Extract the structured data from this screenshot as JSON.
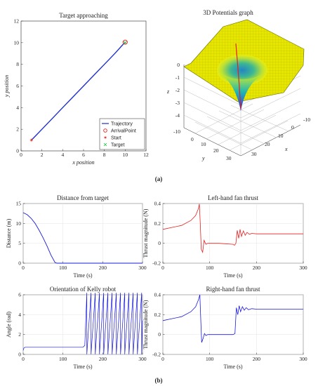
{
  "captions": [
    "(a)",
    "(b)"
  ],
  "colors": {
    "trajectory": "#1f2fcc",
    "blue": "#1a1adb",
    "red": "#e62020",
    "axis": "#262626",
    "grid": "#e6e6e6",
    "surface_yellow": "#e6e600"
  },
  "chart_data": [
    {
      "id": "target",
      "type": "line",
      "title": "Target approaching",
      "xlabel": "x position",
      "ylabel": "y position",
      "xlim": [
        0,
        12
      ],
      "ylim": [
        0,
        12
      ],
      "xticks": [
        0,
        2,
        4,
        6,
        8,
        10,
        12
      ],
      "yticks": [
        0,
        2,
        4,
        6,
        8,
        10,
        12
      ],
      "legend_position": "bottom-right",
      "series": [
        {
          "name": "Trajectory",
          "marker": "line",
          "x": [
            1.0,
            1.5,
            2.0,
            3.0,
            4.0,
            5.0,
            6.0,
            7.0,
            8.0,
            9.0,
            9.8,
            10.0
          ],
          "y": [
            1.0,
            1.5,
            2.0,
            3.0,
            4.0,
            5.0,
            6.0,
            7.0,
            8.0,
            9.0,
            9.85,
            10.0
          ]
        },
        {
          "name": "ArrivalPoint",
          "marker": "circle",
          "x": [
            10.0
          ],
          "y": [
            10.05
          ]
        },
        {
          "name": "Start",
          "marker": "star",
          "x": [
            1.0
          ],
          "y": [
            1.0
          ]
        },
        {
          "name": "Target",
          "marker": "x",
          "x": [
            10.0
          ],
          "y": [
            10.0
          ]
        }
      ]
    },
    {
      "id": "potential3d",
      "type": "surface",
      "title": "3D Potentials graph",
      "xlabel": "x",
      "ylabel": "y",
      "zlabel": "z",
      "zticks": [
        0,
        -1,
        -2,
        -3,
        -4
      ],
      "xticks": [
        -10,
        0,
        10,
        20,
        30
      ],
      "yticks": [
        -10,
        0,
        10,
        20,
        30
      ],
      "minimum": {
        "x": 10,
        "y": 10,
        "z": -3
      }
    },
    {
      "id": "distance",
      "type": "line",
      "title": "Distance from target",
      "xlabel": "Time (s)",
      "ylabel": "Distance (m)",
      "xlim": [
        0,
        300
      ],
      "ylim": [
        0,
        15
      ],
      "xticks": [
        0,
        100,
        200,
        300
      ],
      "yticks": [
        0,
        5,
        10,
        15
      ],
      "series": [
        {
          "x": [
            0,
            10,
            20,
            30,
            40,
            50,
            60,
            70,
            80,
            85,
            300
          ],
          "y": [
            12.7,
            12.2,
            11.3,
            10.0,
            8.3,
            6.4,
            4.3,
            2.0,
            0.2,
            0.0,
            0.0
          ]
        }
      ]
    },
    {
      "id": "left_thrust",
      "type": "line",
      "title": "Left-hand fan thrust",
      "xlabel": "Time (s)",
      "ylabel": "Thrust magnitude (N)",
      "xlim": [
        0,
        300
      ],
      "ylim": [
        -0.2,
        0.4
      ],
      "xticks": [
        0,
        100,
        200,
        300
      ],
      "yticks": [
        -0.2,
        0,
        0.2,
        0.4
      ],
      "series": [
        {
          "x": [
            0,
            20,
            40,
            60,
            70,
            76,
            78,
            80,
            82,
            85,
            88,
            92,
            96,
            100,
            120,
            150,
            153,
            156,
            159,
            162,
            165,
            168,
            172,
            176,
            180,
            185,
            190,
            200,
            300
          ],
          "y": [
            0.14,
            0.16,
            0.18,
            0.23,
            0.28,
            0.35,
            0.395,
            0.2,
            -0.06,
            -0.09,
            0.03,
            -0.01,
            0.0,
            0.0,
            0.0,
            -0.01,
            -0.02,
            0.0,
            0.13,
            0.05,
            0.14,
            0.07,
            0.125,
            0.08,
            0.11,
            0.09,
            0.1,
            0.095,
            0.095
          ]
        }
      ]
    },
    {
      "id": "orientation",
      "type": "line",
      "title": "Orientation of Kelly robot",
      "xlabel": "Time (s)",
      "ylabel": "Angle (rad)",
      "xlim": [
        0,
        300
      ],
      "ylim": [
        0,
        6
      ],
      "xticks": [
        0,
        100,
        200,
        300
      ],
      "yticks": [
        0,
        2,
        4,
        6
      ],
      "series": [
        {
          "x": [
            0,
            2,
            5,
            10,
            150,
            155,
            160
          ],
          "y": [
            0.4,
            0.65,
            0.72,
            0.72,
            0.72,
            0.9,
            6.2
          ]
        }
      ]
    },
    {
      "id": "right_thrust",
      "type": "line",
      "title": "Right-hand fan thrust",
      "xlabel": "Time (s)",
      "ylabel": "Thrust magnitude (N)",
      "xlim": [
        0,
        300
      ],
      "ylim": [
        -0.2,
        0.4
      ],
      "xticks": [
        0,
        100,
        200,
        300
      ],
      "yticks": [
        -0.2,
        0,
        0.2,
        0.4
      ],
      "series": [
        {
          "x": [
            0,
            20,
            40,
            60,
            70,
            76,
            79,
            81,
            83,
            86,
            89,
            92,
            96,
            100,
            120,
            150,
            154,
            157,
            160,
            163,
            166,
            170,
            174,
            178,
            183,
            190,
            200,
            300
          ],
          "y": [
            0.14,
            0.16,
            0.18,
            0.23,
            0.28,
            0.35,
            0.4,
            0.15,
            -0.08,
            -0.04,
            0.01,
            -0.01,
            0.0,
            0.0,
            0.0,
            0.0,
            0.01,
            0.27,
            0.2,
            0.29,
            0.23,
            0.28,
            0.245,
            0.27,
            0.25,
            0.26,
            0.255,
            0.255
          ]
        }
      ]
    }
  ]
}
